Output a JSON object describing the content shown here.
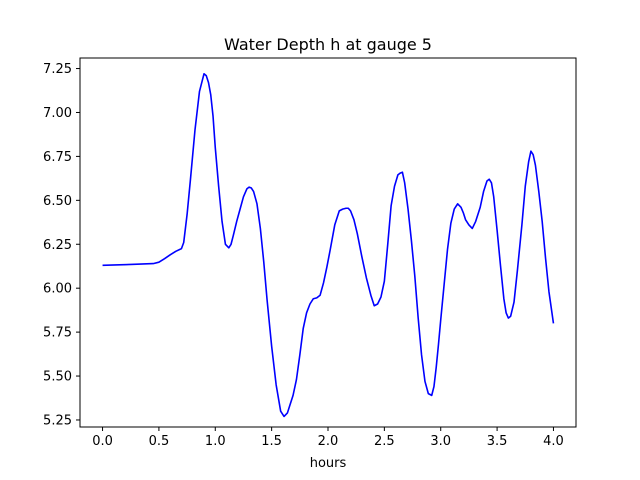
{
  "chart_data": {
    "type": "line",
    "title": "Water Depth h at gauge 5",
    "xlabel": "hours",
    "ylabel": "",
    "xlim": [
      -0.2,
      4.2
    ],
    "ylim": [
      5.21,
      7.31
    ],
    "xticks": [
      0.0,
      0.5,
      1.0,
      1.5,
      2.0,
      2.5,
      3.0,
      3.5,
      4.0
    ],
    "xtick_labels": [
      "0.0",
      "0.5",
      "1.0",
      "1.5",
      "2.0",
      "2.5",
      "3.0",
      "3.5",
      "4.0"
    ],
    "yticks": [
      5.25,
      5.5,
      5.75,
      6.0,
      6.25,
      6.5,
      6.75,
      7.0,
      7.25
    ],
    "ytick_labels": [
      "5.25",
      "5.50",
      "5.75",
      "6.00",
      "6.25",
      "6.50",
      "6.75",
      "7.00",
      "7.25"
    ],
    "grid": false,
    "series": [
      {
        "color": "#0000ff",
        "x": [
          0.0,
          0.25,
          0.45,
          0.5,
          0.55,
          0.6,
          0.65,
          0.7,
          0.72,
          0.75,
          0.78,
          0.82,
          0.86,
          0.9,
          0.92,
          0.94,
          0.96,
          0.98,
          1.0,
          1.03,
          1.06,
          1.09,
          1.12,
          1.14,
          1.16,
          1.19,
          1.22,
          1.25,
          1.28,
          1.3,
          1.32,
          1.34,
          1.37,
          1.4,
          1.43,
          1.46,
          1.5,
          1.54,
          1.58,
          1.61,
          1.64,
          1.66,
          1.69,
          1.72,
          1.75,
          1.78,
          1.81,
          1.84,
          1.87,
          1.9,
          1.93,
          1.96,
          1.99,
          2.02,
          2.06,
          2.1,
          2.13,
          2.16,
          2.18,
          2.2,
          2.23,
          2.26,
          2.3,
          2.34,
          2.38,
          2.41,
          2.44,
          2.47,
          2.5,
          2.53,
          2.56,
          2.59,
          2.62,
          2.64,
          2.66,
          2.68,
          2.71,
          2.74,
          2.77,
          2.8,
          2.83,
          2.86,
          2.89,
          2.92,
          2.94,
          2.96,
          2.98,
          3.0,
          3.03,
          3.06,
          3.09,
          3.12,
          3.15,
          3.18,
          3.2,
          3.22,
          3.25,
          3.28,
          3.31,
          3.35,
          3.38,
          3.41,
          3.43,
          3.45,
          3.47,
          3.5,
          3.53,
          3.56,
          3.58,
          3.6,
          3.62,
          3.65,
          3.68,
          3.72,
          3.75,
          3.78,
          3.8,
          3.82,
          3.84,
          3.87,
          3.9,
          3.93,
          3.96,
          4.0
        ],
        "y": [
          6.13,
          6.135,
          6.14,
          6.148,
          6.168,
          6.19,
          6.21,
          6.225,
          6.26,
          6.42,
          6.62,
          6.9,
          7.12,
          7.22,
          7.21,
          7.17,
          7.1,
          6.98,
          6.8,
          6.58,
          6.38,
          6.25,
          6.23,
          6.25,
          6.3,
          6.38,
          6.45,
          6.52,
          6.565,
          6.575,
          6.57,
          6.55,
          6.48,
          6.34,
          6.15,
          5.93,
          5.67,
          5.45,
          5.3,
          5.27,
          5.29,
          5.33,
          5.39,
          5.48,
          5.62,
          5.77,
          5.86,
          5.91,
          5.94,
          5.945,
          5.96,
          6.03,
          6.12,
          6.22,
          6.36,
          6.44,
          6.45,
          6.455,
          6.455,
          6.44,
          6.39,
          6.31,
          6.18,
          6.06,
          5.96,
          5.9,
          5.91,
          5.95,
          6.04,
          6.25,
          6.47,
          6.58,
          6.645,
          6.655,
          6.66,
          6.6,
          6.45,
          6.27,
          6.07,
          5.83,
          5.62,
          5.47,
          5.4,
          5.39,
          5.44,
          5.55,
          5.68,
          5.82,
          6.02,
          6.22,
          6.37,
          6.45,
          6.48,
          6.46,
          6.43,
          6.39,
          6.36,
          6.34,
          6.38,
          6.46,
          6.55,
          6.61,
          6.62,
          6.6,
          6.52,
          6.33,
          6.13,
          5.94,
          5.86,
          5.83,
          5.84,
          5.92,
          6.1,
          6.36,
          6.58,
          6.72,
          6.78,
          6.76,
          6.7,
          6.55,
          6.38,
          6.17,
          5.98,
          5.8
        ]
      }
    ]
  }
}
